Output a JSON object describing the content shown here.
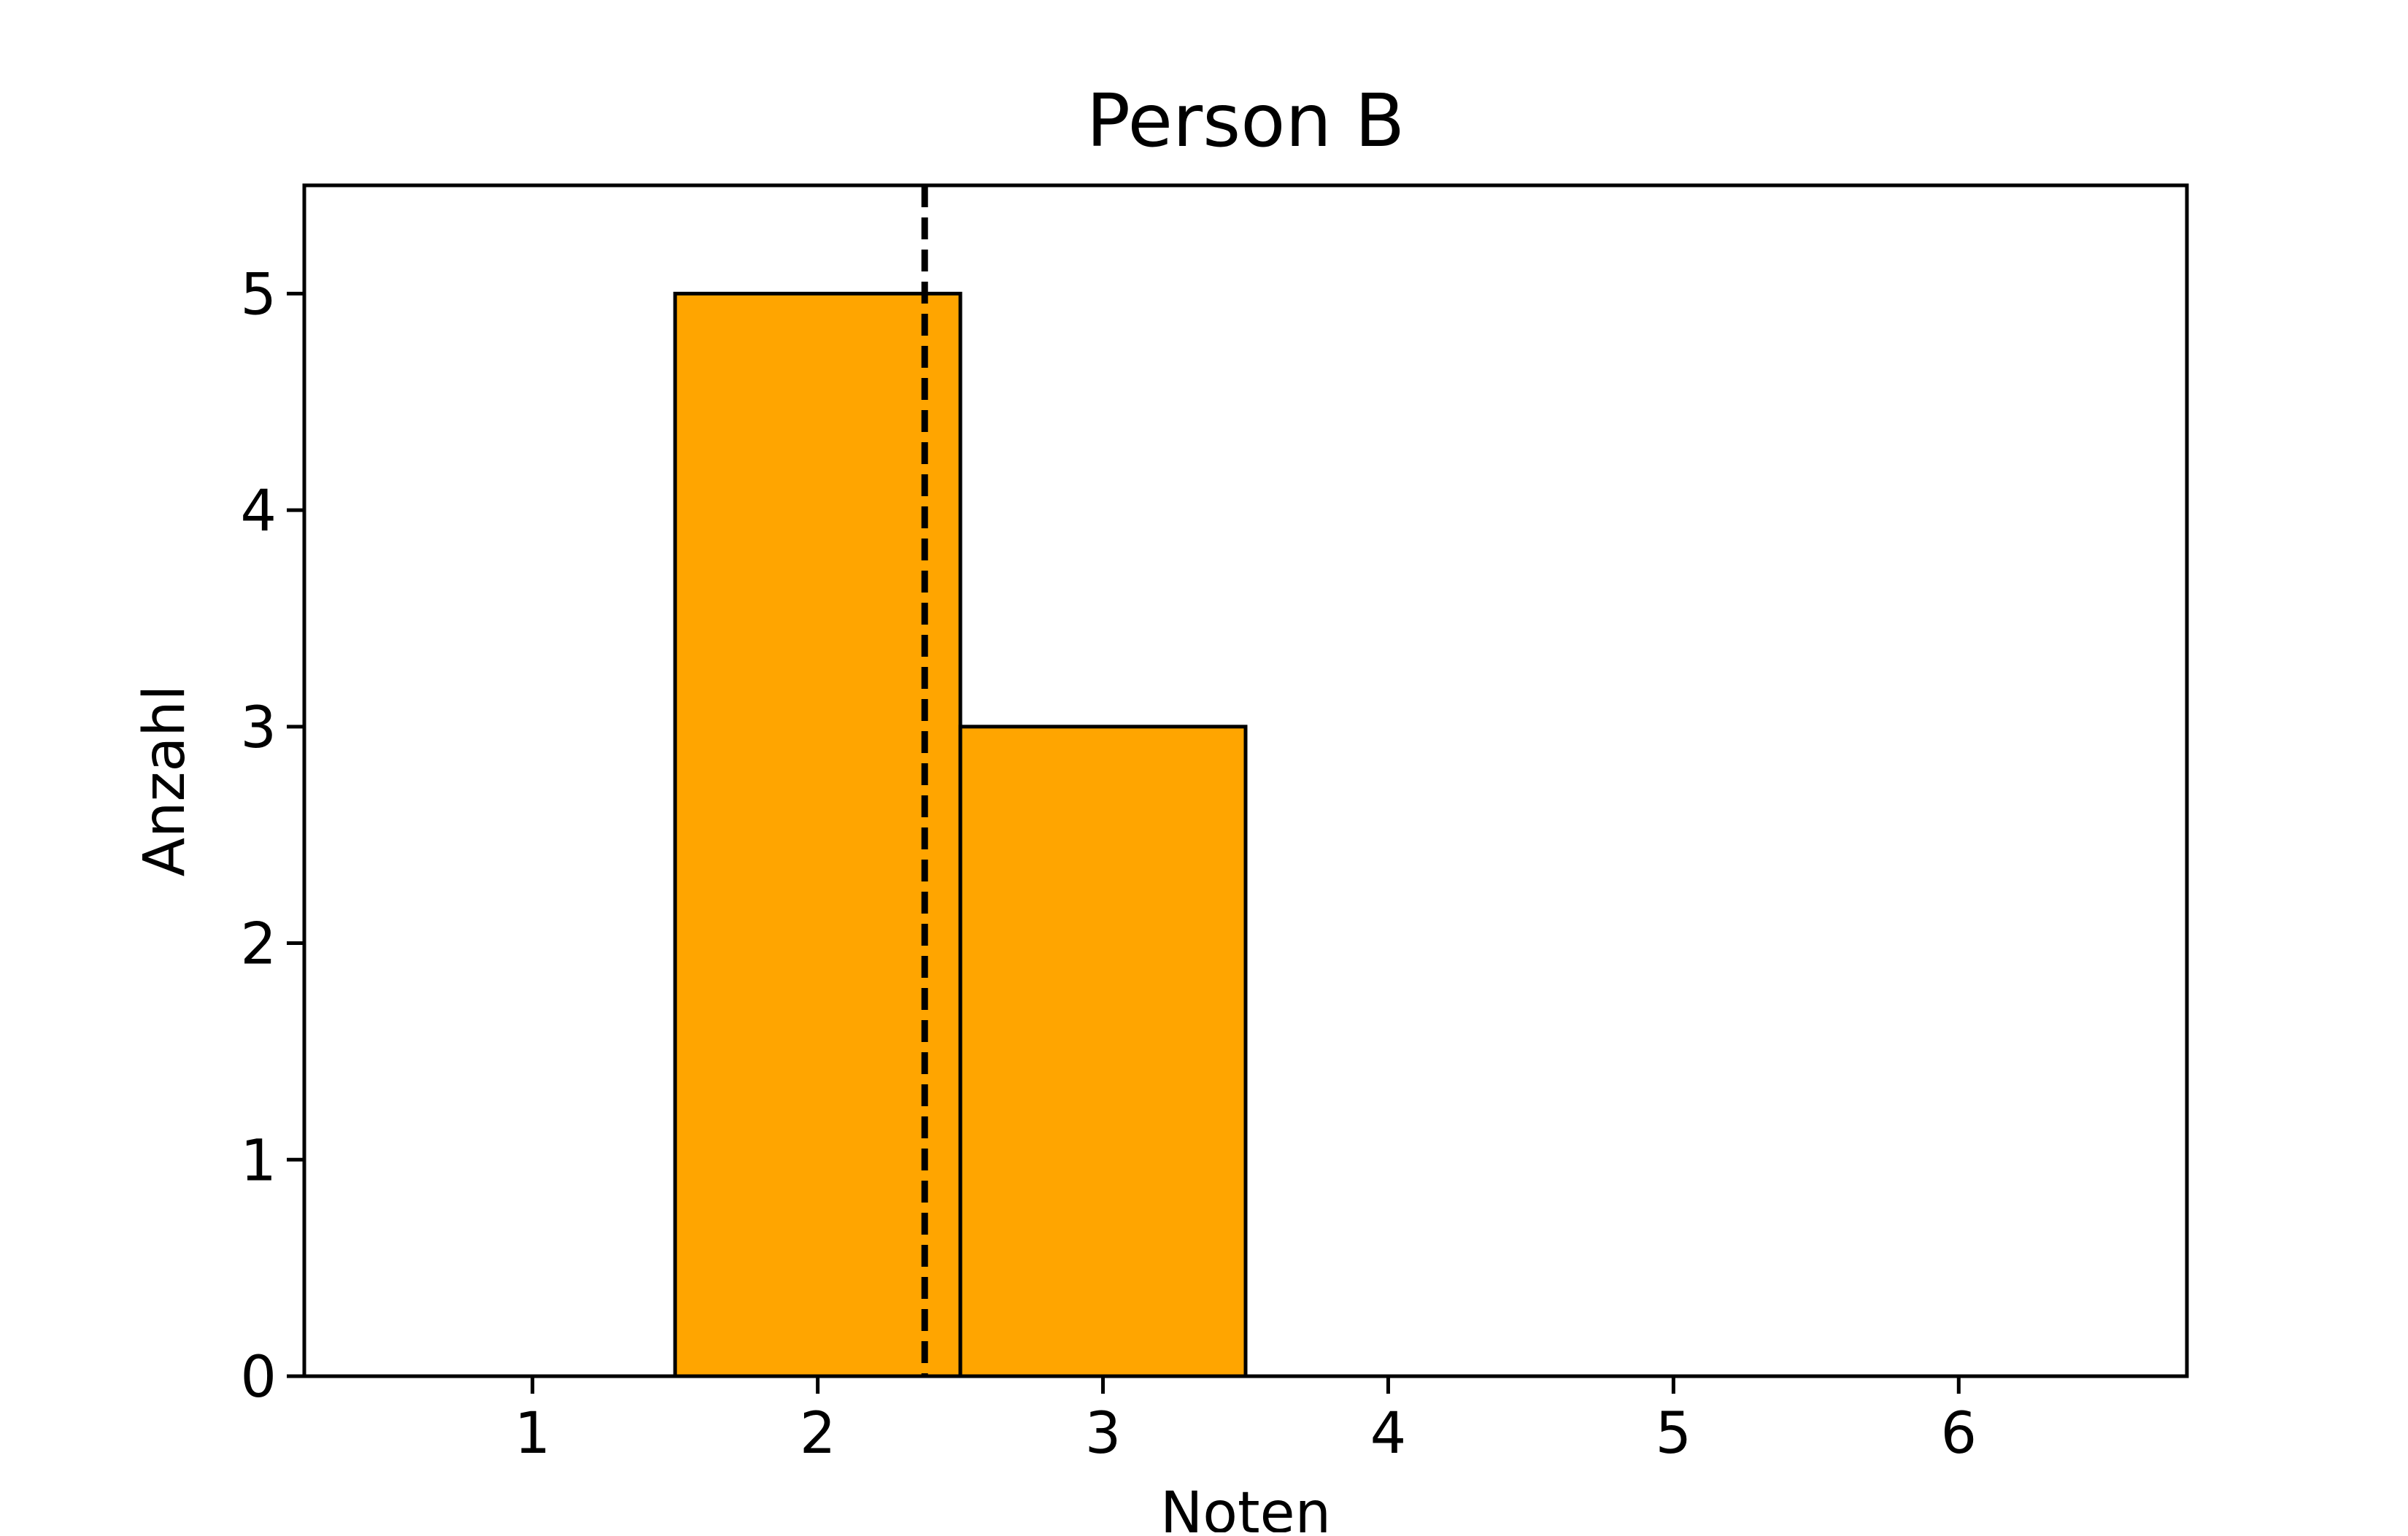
{
  "chart_data": {
    "type": "bar",
    "title": "Person B",
    "xlabel": "Noten",
    "ylabel": "Anzahl",
    "categories": [
      1,
      2,
      3,
      4,
      5,
      6
    ],
    "values": [
      0,
      5,
      3,
      0,
      0,
      0
    ],
    "bin_width": 1,
    "xlim": [
      0.2,
      6.8
    ],
    "ylim": [
      0,
      5.5
    ],
    "xticks": [
      "1",
      "2",
      "3",
      "4",
      "5",
      "6"
    ],
    "yticks": [
      "0",
      "1",
      "2",
      "3",
      "4",
      "5"
    ],
    "mean_line": {
      "x": 2.375,
      "style": "dashed"
    },
    "grid": false,
    "legend": false,
    "colors": {
      "bar_fill": "#ffa500",
      "bar_edge": "#000000",
      "mean_line": "#000000"
    }
  }
}
